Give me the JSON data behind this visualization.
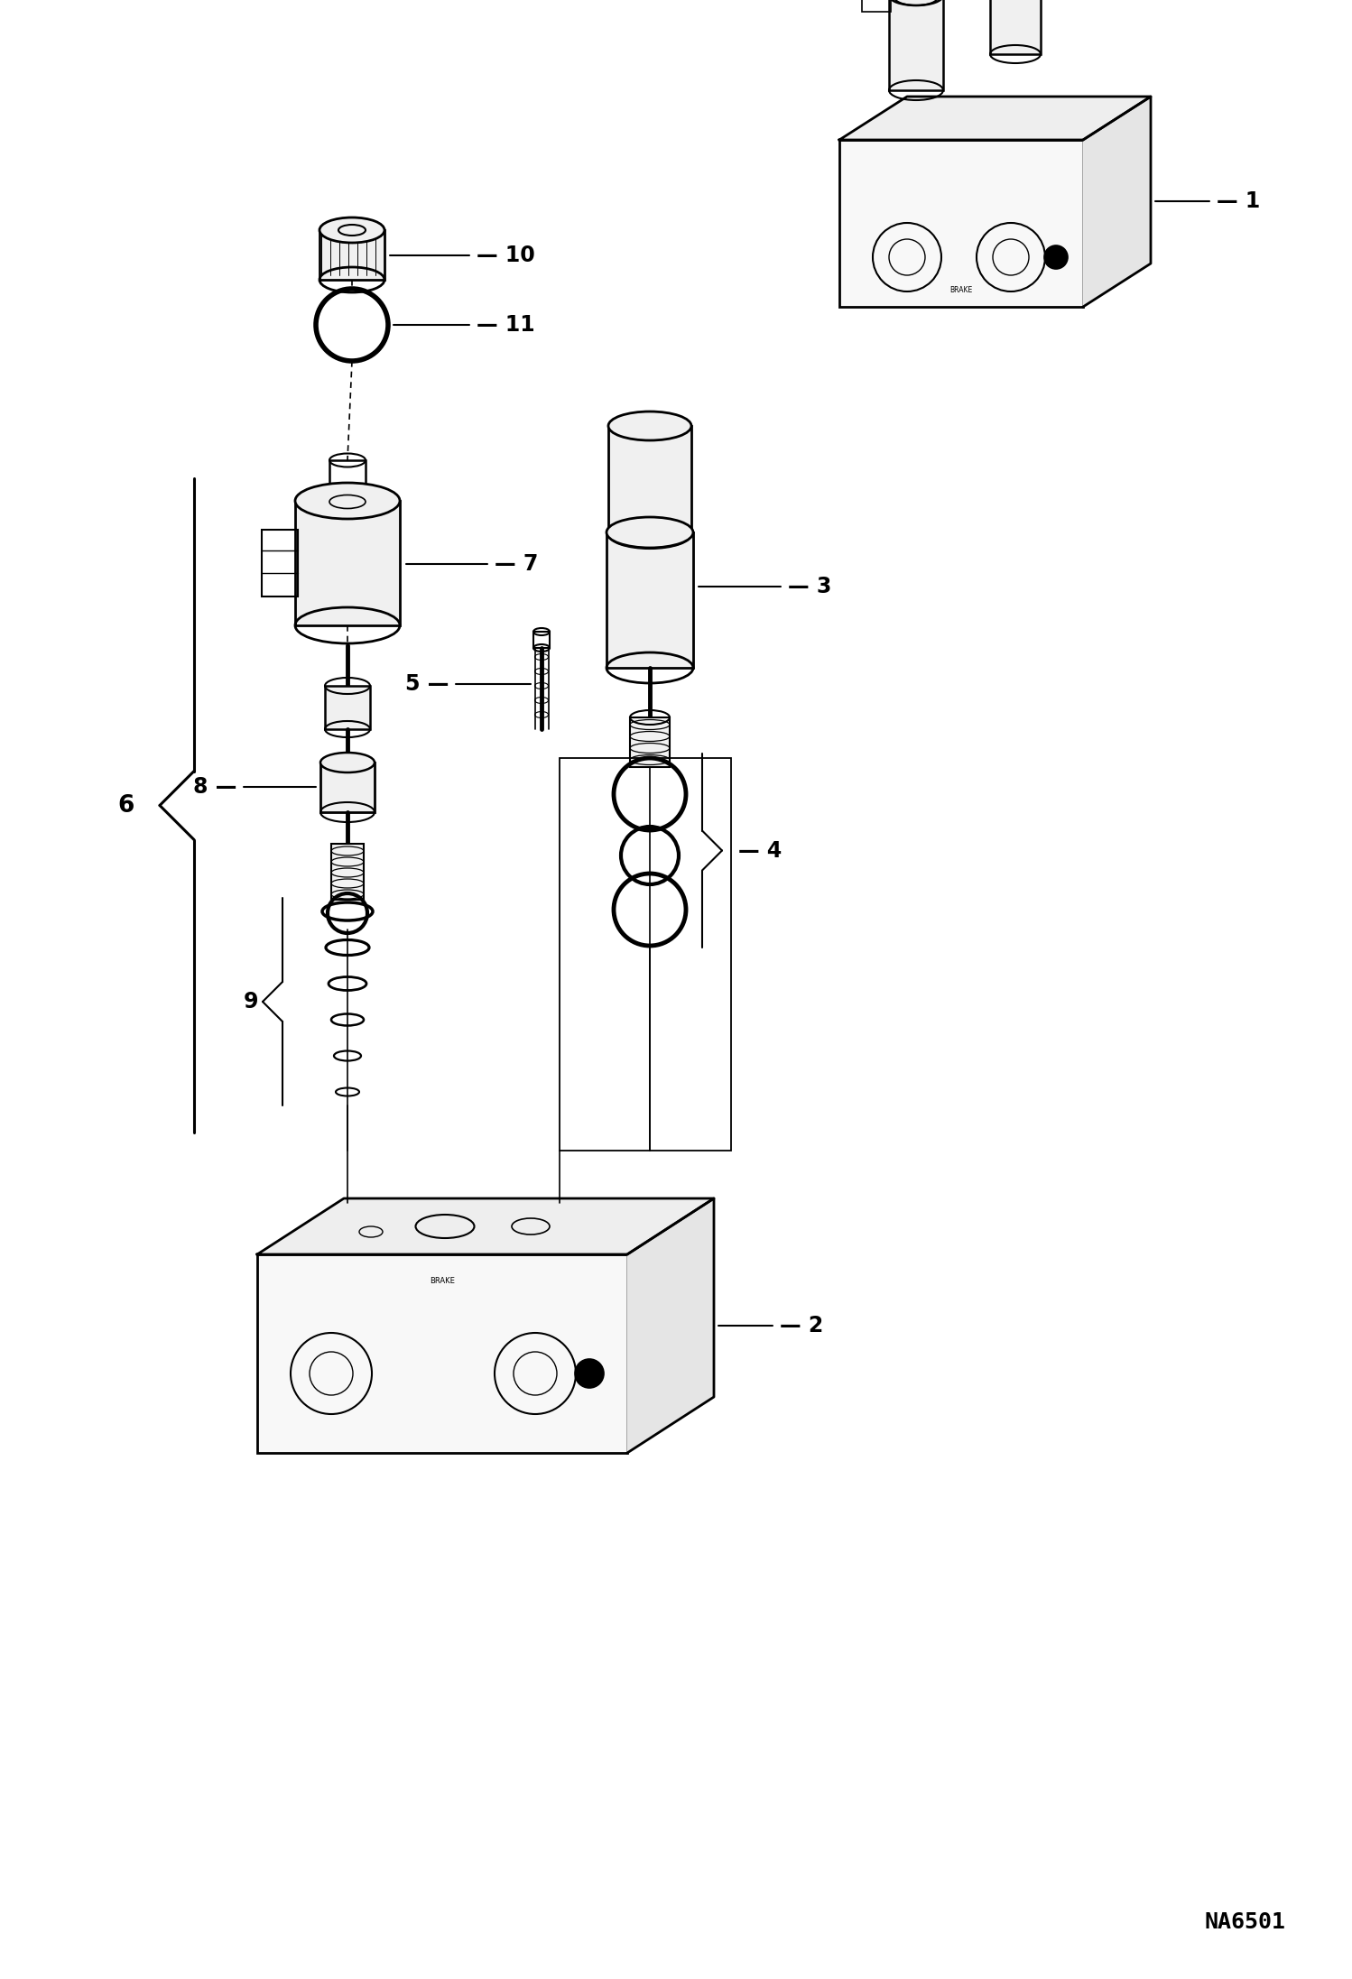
{
  "bg": "#ffffff",
  "lc": "#000000",
  "code": "NA6501",
  "fs": 15,
  "code_fs": 14
}
